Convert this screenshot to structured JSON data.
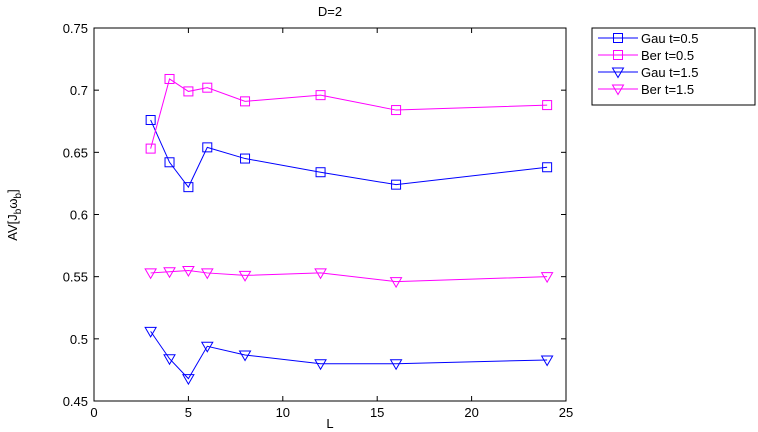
{
  "chart_data": {
    "type": "line",
    "title": "D=2",
    "xlabel": "L",
    "ylabel": "AV[J_b ω_b]",
    "ylabel_parts": {
      "main": "AV[J",
      "sub1": "b",
      "mid": "ω",
      "sub2": "b",
      "end": "]"
    },
    "xlim": [
      0,
      25
    ],
    "ylim": [
      0.45,
      0.75
    ],
    "xticks": [
      0,
      5,
      10,
      15,
      20,
      25
    ],
    "xtick_labels": [
      "0",
      "5",
      "10",
      "15",
      "20",
      "25"
    ],
    "yticks": [
      0.45,
      0.5,
      0.55,
      0.6,
      0.65,
      0.7,
      0.75
    ],
    "ytick_labels": [
      "0.45",
      "0.5",
      "0.55",
      "0.6",
      "0.65",
      "0.7",
      "0.75"
    ],
    "grid": false,
    "legend_position": "outside-top-right",
    "x": [
      3,
      4,
      5,
      6,
      8,
      12,
      16,
      24
    ],
    "series": [
      {
        "name": "Gau t=0.5",
        "color": "#0000ff",
        "marker": "square",
        "values": [
          0.676,
          0.642,
          0.622,
          0.654,
          0.645,
          0.634,
          0.624,
          0.638
        ]
      },
      {
        "name": "Ber t=0.5",
        "color": "#ff00ff",
        "marker": "square",
        "values": [
          0.653,
          0.709,
          0.699,
          0.702,
          0.691,
          0.696,
          0.684,
          0.688
        ]
      },
      {
        "name": "Gau t=1.5",
        "color": "#0000ff",
        "marker": "triangle-down",
        "values": [
          0.506,
          0.484,
          0.468,
          0.494,
          0.487,
          0.48,
          0.48,
          0.483
        ]
      },
      {
        "name": "Ber t=1.5",
        "color": "#ff00ff",
        "marker": "triangle-down",
        "values": [
          0.553,
          0.554,
          0.555,
          0.553,
          0.551,
          0.553,
          0.546,
          0.55
        ]
      }
    ]
  }
}
